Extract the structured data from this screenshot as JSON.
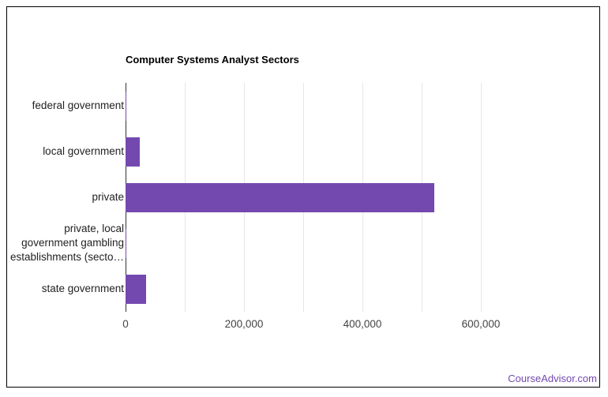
{
  "chart_data": {
    "type": "bar",
    "orientation": "horizontal",
    "title": "Computer Systems Analyst Sectors",
    "categories": [
      "federal government",
      "local government",
      "private",
      "private, local government gambling establishments (secto…",
      "state government"
    ],
    "values": [
      1000,
      24000,
      521500,
      500,
      35000
    ],
    "xlabel": "",
    "ylabel": "",
    "xlim": [
      0,
      700000
    ],
    "xticks": [
      "0",
      "200,000",
      "400,000",
      "600,000"
    ],
    "grid": true,
    "bar_color": "#7349b0"
  },
  "credit": "CourseAdvisor.com"
}
